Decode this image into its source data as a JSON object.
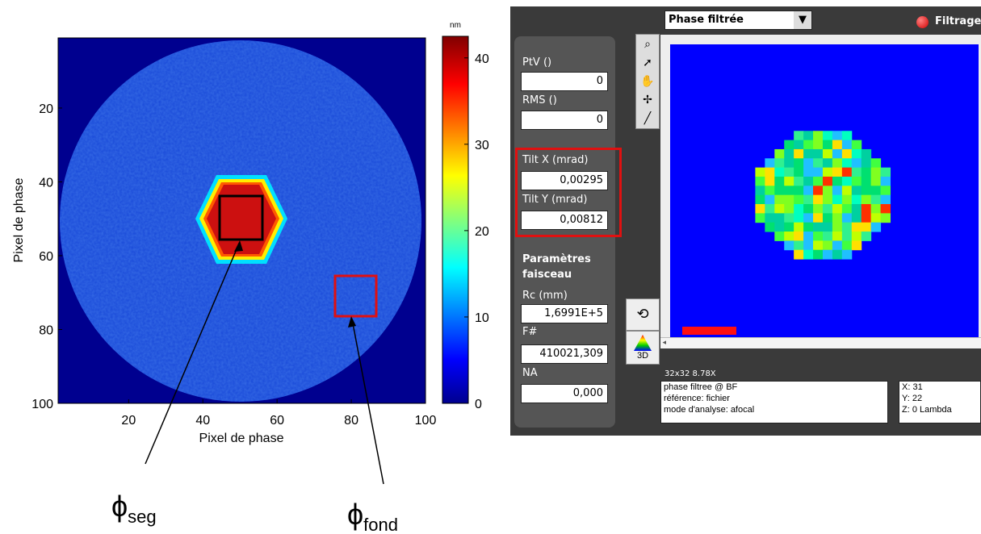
{
  "chart_data": {
    "type": "heatmap",
    "xlabel": "Pixel de phase",
    "ylabel": "Pixel de phase",
    "xlim": [
      1,
      100
    ],
    "ylim": [
      1,
      100
    ],
    "yaxis_inverted": true,
    "xticks": [
      20,
      40,
      60,
      80,
      100
    ],
    "yticks": [
      20,
      40,
      60,
      80,
      100
    ],
    "colorbar": {
      "label": "nm",
      "lim": [
        0,
        42.5
      ],
      "ticks": [
        0,
        10,
        20,
        30,
        40
      ]
    },
    "annotations": [
      {
        "symbol": "ϕ",
        "subscript": "seg"
      },
      {
        "symbol": "ϕ",
        "subscript": "fond"
      }
    ]
  },
  "software": {
    "dropdown": "Phase filtrée",
    "status": "Filtrage",
    "fields": [
      {
        "label": "PtV ()",
        "value": "0"
      },
      {
        "label": "RMS ()",
        "value": "0"
      },
      {
        "label": "Tilt X (mrad)",
        "value": "0,00295"
      },
      {
        "label": "Tilt Y (mrad)",
        "value": "0,00812"
      }
    ],
    "section": "Paramètres faisceau",
    "beam_fields": [
      {
        "label": "Rc (mm)",
        "value": "1,6991E+5"
      },
      {
        "label": "F#",
        "value": "410021,309"
      },
      {
        "label": "NA",
        "value": "0,000"
      }
    ],
    "button_3d": "3D",
    "view_info": "32x32 8.78X",
    "info_lines": [
      "phase filtree @ BF",
      "référence: fichier",
      "mode d'analyse: afocal"
    ],
    "cursor": [
      "X: 31",
      "Y: 22",
      "Z: 0 Lambda"
    ]
  }
}
